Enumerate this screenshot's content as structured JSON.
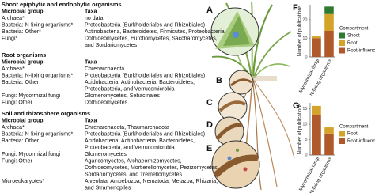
{
  "panel_labels": [
    "A",
    "B",
    "C",
    "D",
    "E"
  ],
  "sections": [
    {
      "title": "Shoot epiphytic and endophytic organisms",
      "header": [
        "Microbial group",
        "Taxa"
      ],
      "rows": [
        {
          "group": "Archaea*",
          "taxa": [
            "no data"
          ]
        },
        {
          "group": "Bacteria: N-fixing organisms*",
          "taxa": [
            "Proteobacteria (Burkholderiales and Rhizobiales)"
          ]
        },
        {
          "group": "Bacteria: Other*",
          "taxa": [
            "Actinobacteria, Bacteroidetes, Firmicutes, Proteobacteria"
          ]
        },
        {
          "group": "Fungi*",
          "taxa": [
            "Dothideomycetes, Eurotiomycetes, Saccharomycetes,",
            "and Sordariomycetes"
          ]
        }
      ]
    },
    {
      "title": "Root organisms",
      "header": [
        "Microbial group",
        "Taxa"
      ],
      "rows": [
        {
          "group": "Archaea*",
          "taxa": [
            "Chrenarchaeota"
          ]
        },
        {
          "group": "Bacteria: N-fixing organisms*",
          "taxa": [
            "Proteobacteria (Burkholderiales and Rhizobiales)"
          ]
        },
        {
          "group": "Bacteria: Other",
          "taxa": [
            "Acidobacteria, Actinobacteria, Bacteroidetes,",
            "Proteobacteria, and Verrucomicrobia"
          ]
        },
        {
          "group": "Fungi: Mycorrhizal fungi",
          "taxa": [
            "Glomeromycetes, Sebacinales"
          ]
        },
        {
          "group": "Fungi: Other",
          "taxa": [
            "Dothideomycetes"
          ]
        }
      ]
    },
    {
      "title": "Soil and rhizosphere organisms",
      "header": [
        "Microbial group",
        "Taxa"
      ],
      "rows": [
        {
          "group": "Archaea*",
          "taxa": [
            "Chrenarchaeota, Thaumarchaeota"
          ]
        },
        {
          "group": "Bacteria: N-fixing organisms*",
          "taxa": [
            "Proteobacteria (Burkholderiales and Rhizobiales)"
          ]
        },
        {
          "group": "Bacteria: Other",
          "taxa": [
            "Acidobacteria, Actinobacteria, Bacteroidetes,",
            "Proteobacteria, and Verrucomicrobia"
          ]
        },
        {
          "group": "Fungi: Mycorrhizal fungi",
          "taxa": [
            "Glomeromycetes"
          ]
        },
        {
          "group": "Fungi: Other",
          "taxa": [
            "Agaricomycetes, Archaeorhizomycetes,",
            "Dothideomycetes, Mortierellomycetes, Pezizomycetes,",
            "Sordariomycetes, and Tremellomycetes"
          ]
        },
        {
          "group": "Microeukaryotes*",
          "taxa": [
            "Alveolata, Amoebozoa, Nematoda, Metazoa, Rhizaria,",
            "and Stramenopiles"
          ]
        }
      ]
    }
  ],
  "chart_data": [
    {
      "type": "stacked_bar",
      "title": "F",
      "y_label": "Number of publications",
      "categories": [
        "Mycorrhizal fungi",
        "N-fixing organisms"
      ],
      "legend_title": "Compartment",
      "series": [
        {
          "name": "Root-influenced soil",
          "color": "#b0592a",
          "values": [
            10,
            14
          ]
        },
        {
          "name": "Root",
          "color": "#d4a32a",
          "values": [
            1,
            9
          ]
        },
        {
          "name": "Shoot",
          "color": "#2f7a32",
          "values": [
            0,
            4
          ]
        }
      ],
      "ylim": [
        0,
        28
      ],
      "yticks": [
        0,
        10,
        20
      ]
    },
    {
      "type": "stacked_bar",
      "title": "G",
      "y_label": "Number of publications",
      "categories": [
        "Mycorrhizal fungi",
        "N-fixing organisms"
      ],
      "legend_title": "Compartment",
      "series": [
        {
          "name": "Root-influenced soil",
          "color": "#b0592a",
          "values": [
            13,
            7
          ]
        },
        {
          "name": "Root",
          "color": "#d4a32a",
          "values": [
            3,
            2
          ]
        }
      ],
      "ylim": [
        0,
        17
      ],
      "yticks": [
        0,
        5,
        10,
        15
      ]
    }
  ]
}
